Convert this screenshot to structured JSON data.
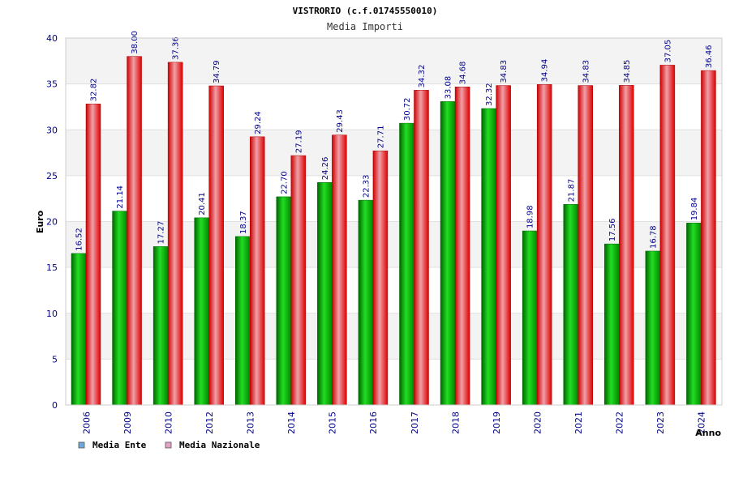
{
  "chart_data": {
    "type": "bar",
    "title": "VISTRORIO (c.f.01745550010)",
    "subtitle": "Media Importi",
    "ylabel": "Euro",
    "xlabel": "Anno",
    "ylim": [
      0,
      40
    ],
    "yticks": [
      0,
      5,
      10,
      15,
      20,
      25,
      30,
      35,
      40
    ],
    "grid": true,
    "legend_position": "bottom-left",
    "categories": [
      "2006",
      "2009",
      "2010",
      "2012",
      "2013",
      "2014",
      "2015",
      "2016",
      "2017",
      "2018",
      "2019",
      "2020",
      "2021",
      "2022",
      "2023",
      "2024"
    ],
    "series": [
      {
        "name": "Media Ente",
        "color": "#00aa00",
        "legend_color": "#6fa8dc",
        "values": [
          16.52,
          21.14,
          17.27,
          20.41,
          18.37,
          22.7,
          24.26,
          22.33,
          30.72,
          33.08,
          32.32,
          18.98,
          21.87,
          17.56,
          16.78,
          19.84
        ],
        "labels": [
          "16.52",
          "21.14",
          "17.27",
          "20.41",
          "18.37",
          "22.70",
          "24.26",
          "22.33",
          "30.72",
          "33.08",
          "32.32",
          "18.98",
          "21.87",
          "17.56",
          "16.78",
          "19.84"
        ]
      },
      {
        "name": "Media Nazionale",
        "color": "#dd0000",
        "legend_color": "#e6a0c4",
        "values": [
          32.82,
          38.0,
          37.36,
          34.79,
          29.24,
          27.19,
          29.43,
          27.71,
          34.32,
          34.68,
          34.83,
          34.94,
          34.83,
          34.85,
          37.05,
          36.46
        ],
        "labels": [
          "32.82",
          "38.00",
          "37.36",
          "34.79",
          "29.24",
          "27.19",
          "29.43",
          "27.71",
          "34.32",
          "34.68",
          "34.83",
          "34.94",
          "34.83",
          "34.85",
          "37.05",
          "36.46"
        ]
      }
    ]
  }
}
